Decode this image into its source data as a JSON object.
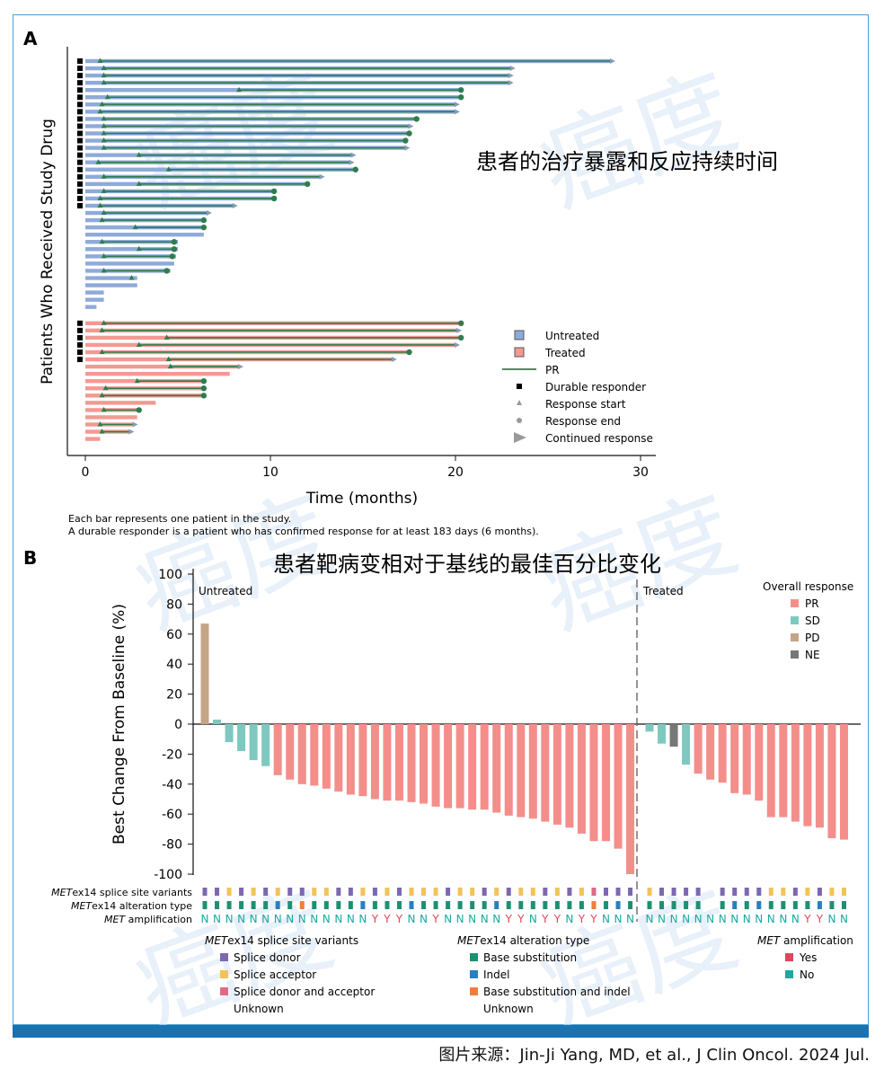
{
  "source": "图片来源：Jin-Ji Yang, MD, et al., J Clin Oncol. 2024 Jul.",
  "watermark": "癌度",
  "colors": {
    "untreated": "#8eaad8",
    "treated": "#f29a92",
    "pr_line": "#2e7d4f",
    "marker": "#2e7d4f",
    "arrow": "#8a9bb5",
    "PR": "#f48e8b",
    "SD": "#7ec8c0",
    "PD": "#c5a587",
    "NE": "#777777",
    "donor": "#7b68b0",
    "acceptor": "#f2c35a",
    "donor_acceptor": "#e06a86",
    "base_sub": "#1f8f73",
    "indel": "#2a7fc0",
    "base_indel": "#f07f3a",
    "amp_yes": "#e0455a",
    "amp_no": "#1aa8a0"
  },
  "chart_data": [
    {
      "panel": "A",
      "type": "bar",
      "title": "患者的治疗暴露和反应持续时间",
      "xlabel": "Time (months)",
      "ylabel": "Patients Who Received Study Drug",
      "xlim": [
        0,
        30
      ],
      "xticks": [
        0,
        10,
        20,
        30
      ],
      "legend": {
        "position": "bottom-right",
        "items": [
          "Untreated",
          "Treated",
          "PR",
          "Durable responder",
          "Response start",
          "Response end",
          "Continued response"
        ]
      },
      "footnote1": "Each bar represents one patient in the study.",
      "footnote2": "A durable responder is a patient who has confirmed response for at least 183 days (6 months).",
      "patients": [
        {
          "g": "u",
          "end": 28.4,
          "s": 0.8,
          "e": 28.4,
          "c": 1,
          "d": 1
        },
        {
          "g": "u",
          "end": 23.0,
          "s": 1.0,
          "e": 23.0,
          "c": 1,
          "d": 1
        },
        {
          "g": "u",
          "end": 22.9,
          "s": 1.0,
          "e": 22.9,
          "c": 1,
          "d": 1
        },
        {
          "g": "u",
          "end": 22.9,
          "s": 1.0,
          "e": 22.9,
          "c": 1,
          "d": 1
        },
        {
          "g": "u",
          "end": 20.3,
          "s": 8.3,
          "e": 20.3,
          "c": 0,
          "d": 1
        },
        {
          "g": "u",
          "end": 20.3,
          "s": 1.2,
          "e": 20.3,
          "c": 0,
          "d": 1
        },
        {
          "g": "u",
          "end": 20.0,
          "s": 0.9,
          "e": 20.0,
          "c": 1,
          "d": 1
        },
        {
          "g": "u",
          "end": 20.0,
          "s": 0.8,
          "e": 20.0,
          "c": 1,
          "d": 1
        },
        {
          "g": "u",
          "end": 17.9,
          "s": 1.0,
          "e": 17.9,
          "c": 0,
          "d": 1
        },
        {
          "g": "u",
          "end": 17.5,
          "s": 1.0,
          "e": 17.5,
          "c": 1,
          "d": 1
        },
        {
          "g": "u",
          "end": 17.5,
          "s": 1.0,
          "e": 17.5,
          "c": 0,
          "d": 1
        },
        {
          "g": "u",
          "end": 17.3,
          "s": 1.0,
          "e": 17.3,
          "c": 0,
          "d": 1
        },
        {
          "g": "u",
          "end": 17.3,
          "s": 1.0,
          "e": 17.3,
          "c": 1,
          "d": 1
        },
        {
          "g": "u",
          "end": 14.4,
          "s": 2.9,
          "e": 14.4,
          "c": 1,
          "d": 1
        },
        {
          "g": "u",
          "end": 14.3,
          "s": 0.7,
          "e": 14.3,
          "c": 1,
          "d": 1
        },
        {
          "g": "u",
          "end": 14.6,
          "s": 4.5,
          "e": 14.6,
          "c": 0,
          "d": 1
        },
        {
          "g": "u",
          "end": 12.7,
          "s": 1.0,
          "e": 12.7,
          "c": 1,
          "d": 1
        },
        {
          "g": "u",
          "end": 12.0,
          "s": 2.9,
          "e": 12.0,
          "c": 0,
          "d": 1
        },
        {
          "g": "u",
          "end": 10.2,
          "s": 1.0,
          "e": 10.2,
          "c": 0,
          "d": 1
        },
        {
          "g": "u",
          "end": 10.2,
          "s": 0.8,
          "e": 10.2,
          "c": 0,
          "d": 1
        },
        {
          "g": "u",
          "end": 8.0,
          "s": 0.8,
          "e": 8.0,
          "c": 1,
          "d": 1
        },
        {
          "g": "u",
          "end": 6.6,
          "s": 1.0,
          "e": 6.6,
          "c": 1,
          "d": 0
        },
        {
          "g": "u",
          "end": 6.4,
          "s": 0.9,
          "e": 6.4,
          "c": 0,
          "d": 0
        },
        {
          "g": "u",
          "end": 6.4,
          "s": 2.7,
          "e": 6.4,
          "c": 0,
          "d": 0
        },
        {
          "g": "u",
          "end": 6.4,
          "s": null,
          "e": null,
          "c": 0,
          "d": 0
        },
        {
          "g": "u",
          "end": 5.0,
          "s": 0.9,
          "e": 4.8,
          "c": 0,
          "d": 0
        },
        {
          "g": "u",
          "end": 5.0,
          "s": 2.9,
          "e": 4.8,
          "c": 0,
          "d": 0
        },
        {
          "g": "u",
          "end": 4.9,
          "s": 1.0,
          "e": 4.7,
          "c": 0,
          "d": 0
        },
        {
          "g": "u",
          "end": 4.8,
          "s": null,
          "e": null,
          "c": 0,
          "d": 0
        },
        {
          "g": "u",
          "end": 4.6,
          "s": 1.0,
          "e": 4.4,
          "c": 0,
          "d": 0
        },
        {
          "g": "u",
          "end": 2.8,
          "s": 2.5,
          "e": null,
          "c": 0,
          "d": 0
        },
        {
          "g": "u",
          "end": 2.8,
          "s": null,
          "e": null,
          "c": 0,
          "d": 0
        },
        {
          "g": "u",
          "end": 1.0,
          "s": null,
          "e": null,
          "c": 0,
          "d": 0
        },
        {
          "g": "u",
          "end": 1.0,
          "s": null,
          "e": null,
          "c": 0,
          "d": 0
        },
        {
          "g": "u",
          "end": 0.6,
          "s": null,
          "e": null,
          "c": 0,
          "d": 0
        },
        {
          "g": "t",
          "end": 20.3,
          "s": 1.0,
          "e": 20.3,
          "c": 0,
          "d": 1
        },
        {
          "g": "t",
          "end": 20.1,
          "s": 0.9,
          "e": 20.1,
          "c": 1,
          "d": 1
        },
        {
          "g": "t",
          "end": 20.3,
          "s": 4.4,
          "e": 20.3,
          "c": 0,
          "d": 1
        },
        {
          "g": "t",
          "end": 20.0,
          "s": 2.9,
          "e": 20.0,
          "c": 1,
          "d": 1
        },
        {
          "g": "t",
          "end": 17.5,
          "s": 0.9,
          "e": 17.5,
          "c": 0,
          "d": 1
        },
        {
          "g": "t",
          "end": 16.6,
          "s": 4.5,
          "e": 16.6,
          "c": 1,
          "d": 1
        },
        {
          "g": "t",
          "end": 8.3,
          "s": 4.6,
          "e": 8.3,
          "c": 1,
          "d": 0
        },
        {
          "g": "t",
          "end": 7.8,
          "s": null,
          "e": null,
          "c": 0,
          "d": 0
        },
        {
          "g": "t",
          "end": 6.4,
          "s": 2.8,
          "e": 6.4,
          "c": 0,
          "d": 0
        },
        {
          "g": "t",
          "end": 6.4,
          "s": 1.1,
          "e": 6.4,
          "c": 0,
          "d": 0
        },
        {
          "g": "t",
          "end": 6.4,
          "s": 0.9,
          "e": 6.4,
          "c": 0,
          "d": 0
        },
        {
          "g": "t",
          "end": 3.8,
          "s": null,
          "e": null,
          "c": 0,
          "d": 0
        },
        {
          "g": "t",
          "end": 3.0,
          "s": 1.0,
          "e": 2.9,
          "c": 0,
          "d": 0
        },
        {
          "g": "t",
          "end": 2.8,
          "s": null,
          "e": null,
          "c": 0,
          "d": 0
        },
        {
          "g": "t",
          "end": 2.6,
          "s": 0.8,
          "e": 2.6,
          "c": 1,
          "d": 0
        },
        {
          "g": "t",
          "end": 2.4,
          "s": 0.9,
          "e": 2.4,
          "c": 1,
          "d": 0
        },
        {
          "g": "t",
          "end": 0.8,
          "s": null,
          "e": null,
          "c": 0,
          "d": 0
        }
      ]
    },
    {
      "panel": "B",
      "type": "bar",
      "title": "患者靶病变相对于基线的最佳百分比变化",
      "ylabel": "Best Change From Baseline (%)",
      "ylim": [
        -100,
        100
      ],
      "yticks": [
        100,
        80,
        60,
        40,
        20,
        0,
        -20,
        -40,
        -60,
        -80,
        -100
      ],
      "group_labels": [
        "Untreated",
        "Treated"
      ],
      "legend_title": "Overall response",
      "legend": [
        "PR",
        "SD",
        "PD",
        "NE"
      ],
      "row_labels": [
        [
          "MET",
          "ex14 splice site variants"
        ],
        [
          "MET",
          "ex14 alteration type"
        ],
        [
          "MET",
          " amplification"
        ]
      ],
      "bottom_legends": [
        {
          "title": [
            "MET",
            "ex14 splice site variants"
          ],
          "items": [
            [
              "donor",
              "Splice donor"
            ],
            [
              "acceptor",
              "Splice acceptor"
            ],
            [
              "donor_acceptor",
              "Splice donor and acceptor"
            ],
            [
              null,
              "Unknown"
            ]
          ]
        },
        {
          "title": [
            "MET",
            "ex14 alteration type"
          ],
          "items": [
            [
              "base_sub",
              "Base substitution"
            ],
            [
              "indel",
              "Indel"
            ],
            [
              "base_indel",
              "Base substitution and indel"
            ],
            [
              null,
              "Unknown"
            ]
          ]
        },
        {
          "title": [
            "MET",
            " amplification"
          ],
          "items": [
            [
              "amp_yes",
              "Yes"
            ],
            [
              "amp_no",
              "No"
            ]
          ]
        }
      ],
      "untreated": [
        {
          "v": 67,
          "r": "PD",
          "sp": "D",
          "al": "B",
          "amp": "N"
        },
        {
          "v": 3,
          "r": "SD",
          "sp": "D",
          "al": "B",
          "amp": "N"
        },
        {
          "v": -12,
          "r": "SD",
          "sp": "A",
          "al": "B",
          "amp": "N"
        },
        {
          "v": -18,
          "r": "SD",
          "sp": "D",
          "al": "B",
          "amp": "N"
        },
        {
          "v": -24,
          "r": "SD",
          "sp": "A",
          "al": "B",
          "amp": "N"
        },
        {
          "v": -28,
          "r": "SD",
          "sp": "D",
          "al": "B",
          "amp": "N"
        },
        {
          "v": -34,
          "r": "PR",
          "sp": "A",
          "al": "I",
          "amp": "N"
        },
        {
          "v": -37,
          "r": "PR",
          "sp": "D",
          "al": "B",
          "amp": "N"
        },
        {
          "v": -40,
          "r": "PR",
          "sp": "D",
          "al": "BI",
          "amp": "N"
        },
        {
          "v": -41,
          "r": "PR",
          "sp": "A",
          "al": "B",
          "amp": "N"
        },
        {
          "v": -43,
          "r": "PR",
          "sp": "A",
          "al": "B",
          "amp": "N"
        },
        {
          "v": -45,
          "r": "PR",
          "sp": "D",
          "al": "B",
          "amp": "N"
        },
        {
          "v": -47,
          "r": "PR",
          "sp": "D",
          "al": "B",
          "amp": "N"
        },
        {
          "v": -48,
          "r": "PR",
          "sp": "A",
          "al": "I",
          "amp": "N"
        },
        {
          "v": -50,
          "r": "PR",
          "sp": "D",
          "al": "B",
          "amp": "Y"
        },
        {
          "v": -51,
          "r": "PR",
          "sp": "A",
          "al": "B",
          "amp": "Y"
        },
        {
          "v": -51,
          "r": "PR",
          "sp": "D",
          "al": "B",
          "amp": "Y"
        },
        {
          "v": -52,
          "r": "PR",
          "sp": "A",
          "al": "I",
          "amp": "N"
        },
        {
          "v": -53,
          "r": "PR",
          "sp": "A",
          "al": "B",
          "amp": "N"
        },
        {
          "v": -55,
          "r": "PR",
          "sp": "A",
          "al": "B",
          "amp": "Y"
        },
        {
          "v": -56,
          "r": "PR",
          "sp": "D",
          "al": "B",
          "amp": "N"
        },
        {
          "v": -56,
          "r": "PR",
          "sp": "A",
          "al": "B",
          "amp": "N"
        },
        {
          "v": -57,
          "r": "PR",
          "sp": "A",
          "al": "B",
          "amp": "N"
        },
        {
          "v": -57,
          "r": "PR",
          "sp": "D",
          "al": "B",
          "amp": "N"
        },
        {
          "v": -59,
          "r": "PR",
          "sp": "A",
          "al": "I",
          "amp": "N"
        },
        {
          "v": -61,
          "r": "PR",
          "sp": "D",
          "al": "B",
          "amp": "Y"
        },
        {
          "v": -62,
          "r": "PR",
          "sp": "A",
          "al": "B",
          "amp": "Y"
        },
        {
          "v": -63,
          "r": "PR",
          "sp": "A",
          "al": "B",
          "amp": "N"
        },
        {
          "v": -65,
          "r": "PR",
          "sp": "D",
          "al": "B",
          "amp": "Y"
        },
        {
          "v": -67,
          "r": "PR",
          "sp": "A",
          "al": "B",
          "amp": "Y"
        },
        {
          "v": -69,
          "r": "PR",
          "sp": "D",
          "al": "B",
          "amp": "N"
        },
        {
          "v": -73,
          "r": "PR",
          "sp": "A",
          "al": "B",
          "amp": "Y"
        },
        {
          "v": -78,
          "r": "PR",
          "sp": "DA",
          "al": "BI",
          "amp": "Y"
        },
        {
          "v": -78,
          "r": "PR",
          "sp": "D",
          "al": "B",
          "amp": "N"
        },
        {
          "v": -83,
          "r": "PR",
          "sp": "D",
          "al": "I",
          "amp": "N"
        },
        {
          "v": -100,
          "r": "PR",
          "sp": "D",
          "al": "B",
          "amp": "N"
        }
      ],
      "treated": [
        {
          "v": -5,
          "r": "SD",
          "sp": "A",
          "al": "B",
          "amp": "N"
        },
        {
          "v": -13,
          "r": "SD",
          "sp": "D",
          "al": "B",
          "amp": "N"
        },
        {
          "v": -15,
          "r": "NE",
          "sp": "D",
          "al": "B",
          "amp": "N"
        },
        {
          "v": -27,
          "r": "SD",
          "sp": "D",
          "al": "B",
          "amp": "N"
        },
        {
          "v": -33,
          "r": "PR",
          "sp": "D",
          "al": "B",
          "amp": "N"
        },
        {
          "v": -37,
          "r": "PR",
          "sp": null,
          "al": null,
          "amp": "N"
        },
        {
          "v": -39,
          "r": "PR",
          "sp": "D",
          "al": "B",
          "amp": "N"
        },
        {
          "v": -46,
          "r": "PR",
          "sp": "D",
          "al": "I",
          "amp": "N"
        },
        {
          "v": -47,
          "r": "PR",
          "sp": "D",
          "al": "B",
          "amp": "N"
        },
        {
          "v": -51,
          "r": "PR",
          "sp": "D",
          "al": "I",
          "amp": "N"
        },
        {
          "v": -62,
          "r": "PR",
          "sp": "A",
          "al": "B",
          "amp": "N"
        },
        {
          "v": -62,
          "r": "PR",
          "sp": "A",
          "al": "B",
          "amp": "N"
        },
        {
          "v": -65,
          "r": "PR",
          "sp": "D",
          "al": "B",
          "amp": "N"
        },
        {
          "v": -68,
          "r": "PR",
          "sp": "A",
          "al": "B",
          "amp": "Y"
        },
        {
          "v": -69,
          "r": "PR",
          "sp": "D",
          "al": "I",
          "amp": "Y"
        },
        {
          "v": -76,
          "r": "PR",
          "sp": "A",
          "al": "B",
          "amp": "N"
        },
        {
          "v": -77,
          "r": "PR",
          "sp": "A",
          "al": "B",
          "amp": "N"
        }
      ]
    }
  ]
}
